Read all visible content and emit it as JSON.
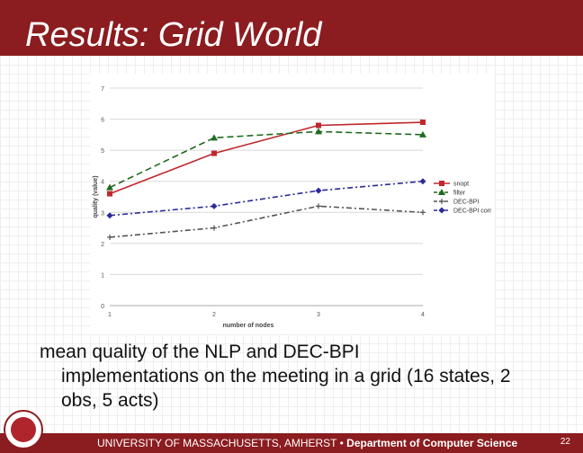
{
  "slide": {
    "title": "Results: Grid World",
    "caption_first": "mean quality of the NLP and DEC-BPI",
    "caption_rest": "implementations on the meeting in a grid (16 states, 2 obs, 5 acts)",
    "footer_univ": "UNIVERSITY OF MASSACHUSETTS, AMHERST",
    "footer_sep": "•",
    "footer_dept": "Department of Computer Science",
    "page_number": "22",
    "colors": {
      "banner": "#8b1c1f"
    }
  },
  "chart_data": {
    "type": "line",
    "x": [
      1,
      2,
      3,
      4
    ],
    "xlabel": "number of nodes",
    "ylabel": "quality (value)",
    "ylim": [
      0,
      7
    ],
    "yticks": [
      0,
      1,
      2,
      3,
      4,
      5,
      6,
      7
    ],
    "xticks": [
      1,
      2,
      3,
      4
    ],
    "grid": true,
    "legend": "right",
    "series": [
      {
        "name": "snopt",
        "values": [
          3.6,
          4.9,
          5.8,
          5.9
        ],
        "color": "#c0282d",
        "dash": "",
        "marker": "square"
      },
      {
        "name": "filter",
        "values": [
          3.8,
          5.4,
          5.6,
          5.5
        ],
        "color": "#1f6b1f",
        "dash": "7,4",
        "marker": "triangle"
      },
      {
        "name": "DEC-BPI",
        "values": [
          2.2,
          2.5,
          3.2,
          3.0
        ],
        "color": "#555555",
        "dash": "6,3,2,3",
        "marker": "plus"
      },
      {
        "name": "DEC-BPI corr",
        "values": [
          2.9,
          3.2,
          3.7,
          4.0
        ],
        "color": "#2a2a9a",
        "dash": "6,3,2,3",
        "marker": "diamond"
      }
    ]
  }
}
